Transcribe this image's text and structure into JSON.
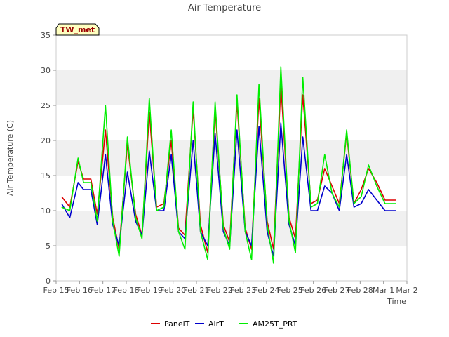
{
  "chart_data": {
    "type": "line",
    "title": "Air Temperature",
    "xlabel": "Time",
    "ylabel": "Air Temperature (C)",
    "station_label": "TW_met",
    "ylim": [
      0,
      35
    ],
    "yticks": [
      0,
      5,
      10,
      15,
      20,
      25,
      30,
      35
    ],
    "xlim": [
      "2024-02-15",
      "2024-03-02"
    ],
    "xtick_labels": [
      "Feb 15",
      "Feb 16",
      "Feb 17",
      "Feb 18",
      "Feb 19",
      "Feb 20",
      "Feb 21",
      "Feb 22",
      "Feb 23",
      "Feb 24",
      "Feb 25",
      "Feb 26",
      "Feb 27",
      "Feb 28",
      "Mar 1",
      "Mar 2"
    ],
    "grid": "horizontal bands",
    "legend_position": "bottom",
    "series": [
      {
        "name": "PanelT",
        "color": "#dd0000",
        "x": [
          "2024-02-15T06:00",
          "2024-02-15T15:00",
          "2024-02-16T00:00",
          "2024-02-16T06:00",
          "2024-02-16T14:00",
          "2024-02-16T21:00",
          "2024-02-17T06:00",
          "2024-02-17T14:00",
          "2024-02-17T21:00",
          "2024-02-18T06:00",
          "2024-02-18T15:00",
          "2024-02-18T22:00",
          "2024-02-19T06:00",
          "2024-02-19T14:00",
          "2024-02-19T22:00",
          "2024-02-20T06:00",
          "2024-02-20T14:00",
          "2024-02-20T21:00",
          "2024-02-21T06:00",
          "2024-02-21T14:00",
          "2024-02-21T22:00",
          "2024-02-22T06:00",
          "2024-02-22T15:00",
          "2024-02-22T22:00",
          "2024-02-23T06:00",
          "2024-02-23T15:00",
          "2024-02-23T22:00",
          "2024-02-24T06:00",
          "2024-02-24T15:00",
          "2024-02-24T22:00",
          "2024-02-25T06:00",
          "2024-02-25T15:00",
          "2024-02-25T22:00",
          "2024-02-26T06:00",
          "2024-02-26T15:00",
          "2024-02-26T22:00",
          "2024-02-27T06:00",
          "2024-02-27T14:00",
          "2024-02-27T22:00",
          "2024-02-28T06:00",
          "2024-02-28T14:00",
          "2024-02-28T22:00",
          "2024-02-29T06:00",
          "2024-02-29T15:00",
          "2024-03-01T00:00",
          "2024-03-01T06:00",
          "2024-03-01T12:00"
        ],
        "y": [
          12.0,
          10.5,
          17.0,
          14.5,
          14.5,
          9.5,
          21.5,
          9.0,
          4.5,
          19.5,
          9.5,
          6.5,
          24.0,
          10.5,
          11.0,
          20.0,
          7.5,
          6.5,
          24.5,
          8.0,
          4.0,
          24.5,
          8.0,
          5.5,
          25.5,
          7.5,
          4.5,
          26.0,
          8.5,
          4.5,
          28.0,
          9.0,
          6.0,
          26.5,
          11.0,
          11.5,
          16.0,
          13.5,
          11.0,
          21.0,
          11.0,
          13.0,
          16.0,
          14.0,
          11.5,
          11.5,
          11.5
        ]
      },
      {
        "name": "AirT",
        "color": "#0000cc",
        "x": [
          "2024-02-15T06:00",
          "2024-02-15T15:00",
          "2024-02-16T00:00",
          "2024-02-16T06:00",
          "2024-02-16T14:00",
          "2024-02-16T21:00",
          "2024-02-17T06:00",
          "2024-02-17T14:00",
          "2024-02-17T21:00",
          "2024-02-18T06:00",
          "2024-02-18T15:00",
          "2024-02-18T22:00",
          "2024-02-19T06:00",
          "2024-02-19T14:00",
          "2024-02-19T22:00",
          "2024-02-20T06:00",
          "2024-02-20T14:00",
          "2024-02-20T21:00",
          "2024-02-21T06:00",
          "2024-02-21T14:00",
          "2024-02-21T22:00",
          "2024-02-22T06:00",
          "2024-02-22T15:00",
          "2024-02-22T22:00",
          "2024-02-23T06:00",
          "2024-02-23T15:00",
          "2024-02-23T22:00",
          "2024-02-24T06:00",
          "2024-02-24T15:00",
          "2024-02-24T22:00",
          "2024-02-25T06:00",
          "2024-02-25T15:00",
          "2024-02-25T22:00",
          "2024-02-26T06:00",
          "2024-02-26T15:00",
          "2024-02-26T22:00",
          "2024-02-27T06:00",
          "2024-02-27T14:00",
          "2024-02-27T22:00",
          "2024-02-28T06:00",
          "2024-02-28T14:00",
          "2024-02-28T22:00",
          "2024-02-29T06:00",
          "2024-02-29T15:00",
          "2024-03-01T00:00",
          "2024-03-01T06:00",
          "2024-03-01T12:00"
        ],
        "y": [
          11.0,
          9.0,
          14.0,
          13.0,
          13.0,
          8.0,
          18.0,
          8.0,
          5.0,
          15.5,
          8.5,
          6.5,
          18.5,
          10.0,
          10.0,
          18.0,
          7.0,
          6.0,
          20.0,
          7.0,
          5.0,
          21.0,
          7.0,
          5.0,
          21.5,
          7.0,
          5.0,
          22.0,
          7.0,
          3.5,
          22.5,
          8.0,
          5.0,
          20.5,
          10.0,
          10.0,
          13.5,
          12.5,
          10.0,
          18.0,
          10.5,
          11.0,
          13.0,
          11.5,
          10.0,
          10.0,
          10.0
        ]
      },
      {
        "name": "AM25T_PRT",
        "color": "#00ee00",
        "x": [
          "2024-02-15T06:00",
          "2024-02-15T15:00",
          "2024-02-16T00:00",
          "2024-02-16T06:00",
          "2024-02-16T14:00",
          "2024-02-16T21:00",
          "2024-02-17T06:00",
          "2024-02-17T14:00",
          "2024-02-17T21:00",
          "2024-02-18T06:00",
          "2024-02-18T15:00",
          "2024-02-18T22:00",
          "2024-02-19T06:00",
          "2024-02-19T14:00",
          "2024-02-19T22:00",
          "2024-02-20T06:00",
          "2024-02-20T14:00",
          "2024-02-20T21:00",
          "2024-02-21T06:00",
          "2024-02-21T14:00",
          "2024-02-21T22:00",
          "2024-02-22T06:00",
          "2024-02-22T15:00",
          "2024-02-22T22:00",
          "2024-02-23T06:00",
          "2024-02-23T15:00",
          "2024-02-23T22:00",
          "2024-02-24T06:00",
          "2024-02-24T15:00",
          "2024-02-24T22:00",
          "2024-02-25T06:00",
          "2024-02-25T15:00",
          "2024-02-25T22:00",
          "2024-02-26T06:00",
          "2024-02-26T15:00",
          "2024-02-26T22:00",
          "2024-02-27T06:00",
          "2024-02-27T14:00",
          "2024-02-27T22:00",
          "2024-02-28T06:00",
          "2024-02-28T14:00",
          "2024-02-28T22:00",
          "2024-02-29T06:00",
          "2024-02-29T15:00",
          "2024-03-01T00:00",
          "2024-03-01T06:00",
          "2024-03-01T12:00"
        ],
        "y": [
          10.5,
          10.0,
          17.5,
          14.0,
          14.0,
          8.5,
          25.0,
          8.5,
          3.5,
          20.5,
          9.0,
          6.0,
          26.0,
          10.0,
          10.5,
          21.5,
          7.0,
          4.5,
          25.5,
          7.0,
          3.0,
          25.5,
          7.5,
          4.5,
          26.5,
          7.0,
          3.0,
          28.0,
          8.0,
          2.5,
          30.5,
          8.5,
          4.0,
          29.0,
          10.5,
          11.0,
          18.0,
          12.5,
          10.5,
          21.5,
          11.0,
          12.0,
          16.5,
          13.5,
          11.0,
          11.0,
          11.0
        ]
      }
    ]
  }
}
